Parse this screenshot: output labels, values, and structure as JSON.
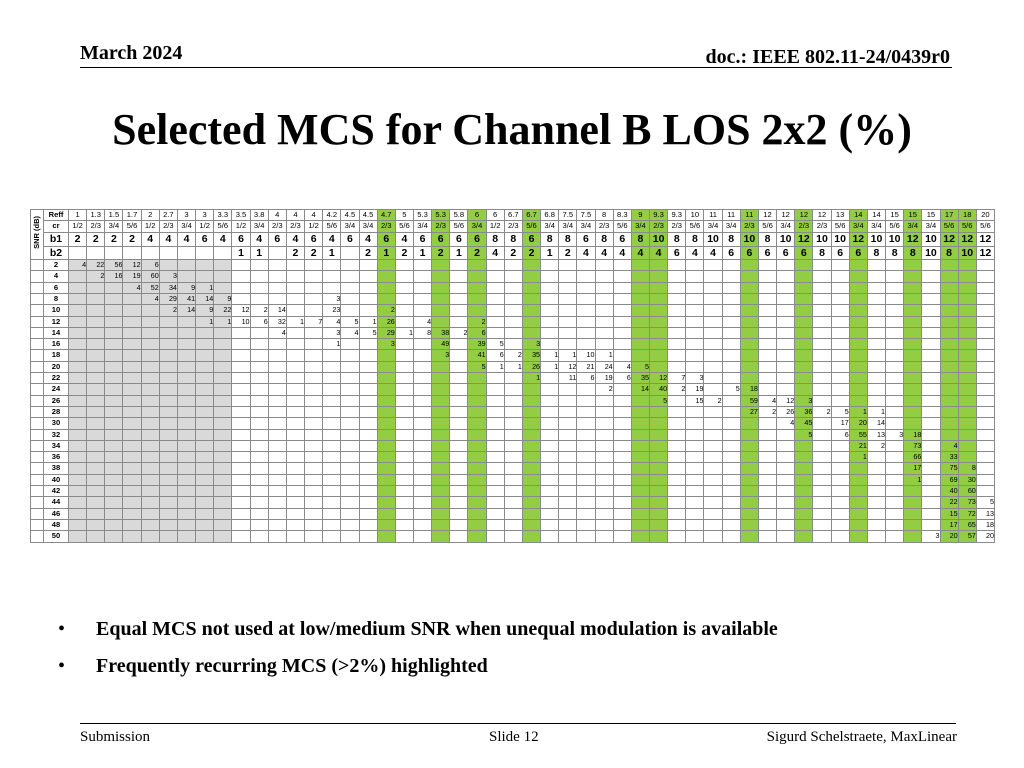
{
  "header": {
    "date": "March 2024",
    "doc": "doc.: IEEE 802.11-24/0439r0"
  },
  "title": "Selected MCS for Channel B LOS 2x2 (%)",
  "table": {
    "snr_axis_label": "SNR (dB)",
    "row_labels": {
      "reff": "Reff",
      "cr": "cr",
      "b1": "b1",
      "b2": "b2"
    },
    "reff": [
      "1",
      "1.3",
      "1.5",
      "1.7",
      "2",
      "2.7",
      "3",
      "3",
      "3.3",
      "3.5",
      "3.8",
      "4",
      "4",
      "4",
      "4.2",
      "4.5",
      "4.5",
      "4.7",
      "5",
      "5.3",
      "5.3",
      "5.8",
      "6",
      "6",
      "6.7",
      "6.7",
      "6.8",
      "7.5",
      "7.5",
      "8",
      "8.3",
      "9",
      "9.3",
      "9.3",
      "10",
      "11",
      "11",
      "11",
      "12",
      "12",
      "12",
      "12",
      "13",
      "14",
      "14",
      "15",
      "15",
      "15",
      "17",
      "18",
      "20"
    ],
    "cr": [
      "1/2",
      "2/3",
      "3/4",
      "5/6",
      "1/2",
      "2/3",
      "3/4",
      "1/2",
      "5/6",
      "1/2",
      "3/4",
      "2/3",
      "2/3",
      "1/2",
      "5/6",
      "3/4",
      "3/4",
      "2/3",
      "5/6",
      "3/4",
      "2/3",
      "5/6",
      "3/4",
      "1/2",
      "2/3",
      "5/6",
      "3/4",
      "3/4",
      "3/4",
      "2/3",
      "5/6",
      "3/4",
      "2/3",
      "2/3",
      "5/6",
      "3/4",
      "3/4",
      "2/3",
      "5/6",
      "3/4",
      "2/3",
      "2/3",
      "5/6",
      "3/4",
      "3/4",
      "5/6",
      "3/4",
      "3/4",
      "5/6",
      "5/6",
      "5/6"
    ],
    "b1": [
      "2",
      "2",
      "2",
      "2",
      "4",
      "4",
      "4",
      "6",
      "4",
      "6",
      "4",
      "6",
      "4",
      "6",
      "4",
      "6",
      "4",
      "6",
      "4",
      "6",
      "6",
      "6",
      "6",
      "8",
      "8",
      "6",
      "8",
      "8",
      "6",
      "8",
      "6",
      "8",
      "10",
      "8",
      "8",
      "10",
      "8",
      "10",
      "8",
      "10",
      "12",
      "10",
      "10",
      "12",
      "10",
      "10",
      "12",
      "10",
      "12",
      "12",
      "12"
    ],
    "b2": [
      "",
      "",
      "",
      "",
      "",
      "",
      "",
      "",
      "",
      "1",
      "1",
      "",
      "2",
      "2",
      "1",
      "",
      "2",
      "1",
      "2",
      "1",
      "2",
      "1",
      "2",
      "4",
      "2",
      "2",
      "1",
      "2",
      "4",
      "4",
      "4",
      "4",
      "4",
      "6",
      "4",
      "4",
      "6",
      "6",
      "6",
      "6",
      "6",
      "8",
      "6",
      "6",
      "8",
      "8",
      "8",
      "10",
      "8",
      "10",
      "12"
    ],
    "highlight_columns": [
      17,
      20,
      22,
      25,
      31,
      32,
      37,
      40,
      43,
      46,
      48,
      49
    ],
    "rows": [
      {
        "snr": "2",
        "cells": {
          "0": "4",
          "1": "22",
          "2": "56",
          "3": "12",
          "4": "6"
        }
      },
      {
        "snr": "4",
        "cells": {
          "1": "2",
          "2": "16",
          "3": "19",
          "4": "60",
          "5": "3"
        }
      },
      {
        "snr": "6",
        "cells": {
          "3": "4",
          "4": "52",
          "5": "34",
          "6": "9",
          "7": "1"
        }
      },
      {
        "snr": "8",
        "cells": {
          "4": "4",
          "5": "29",
          "6": "41",
          "7": "14",
          "8": "9",
          "14": "3"
        }
      },
      {
        "snr": "10",
        "cells": {
          "5": "2",
          "6": "14",
          "7": "9",
          "8": "22",
          "9": "12",
          "10": "2",
          "11": "14",
          "14": "23",
          "17": "2"
        }
      },
      {
        "snr": "12",
        "cells": {
          "7": "1",
          "8": "1",
          "9": "10",
          "10": "6",
          "11": "32",
          "12": "1",
          "13": "7",
          "14": "4",
          "15": "5",
          "16": "1",
          "17": "26",
          "19": "4",
          "22": "2"
        }
      },
      {
        "snr": "14",
        "cells": {
          "11": "4",
          "14": "3",
          "15": "4",
          "16": "5",
          "17": "29",
          "18": "1",
          "19": "8",
          "20": "38",
          "21": "2",
          "22": "6"
        }
      },
      {
        "snr": "16",
        "cells": {
          "14": "1",
          "17": "3",
          "20": "49",
          "22": "39",
          "23": "5",
          "25": "3"
        }
      },
      {
        "snr": "18",
        "cells": {
          "20": "3",
          "22": "41",
          "23": "6",
          "24": "2",
          "25": "35",
          "26": "1",
          "27": "1",
          "28": "10",
          "29": "1"
        }
      },
      {
        "snr": "20",
        "cells": {
          "22": "5",
          "23": "1",
          "24": "1",
          "25": "26",
          "26": "1",
          "27": "12",
          "28": "21",
          "29": "24",
          "30": "4",
          "31": "5"
        }
      },
      {
        "snr": "22",
        "cells": {
          "25": "1",
          "27": "11",
          "28": "6",
          "29": "19",
          "30": "6",
          "31": "35",
          "32": "12",
          "33": "7",
          "34": "3"
        }
      },
      {
        "snr": "24",
        "cells": {
          "29": "2",
          "31": "14",
          "32": "40",
          "33": "2",
          "34": "19",
          "36": "5",
          "37": "18"
        }
      },
      {
        "snr": "26",
        "cells": {
          "32": "5",
          "34": "15",
          "35": "2",
          "37": "59",
          "38": "4",
          "39": "12",
          "40": "3"
        }
      },
      {
        "snr": "28",
        "cells": {
          "37": "27",
          "38": "2",
          "39": "26",
          "40": "36",
          "41": "2",
          "42": "5",
          "43": "1",
          "44": "1"
        }
      },
      {
        "snr": "30",
        "cells": {
          "39": "4",
          "40": "45",
          "42": "17",
          "43": "20",
          "44": "14"
        }
      },
      {
        "snr": "32",
        "cells": {
          "40": "5",
          "42": "6",
          "43": "55",
          "44": "13",
          "45": "3",
          "46": "18"
        }
      },
      {
        "snr": "34",
        "cells": {
          "43": "21",
          "44": "2",
          "46": "73",
          "48": "4"
        }
      },
      {
        "snr": "36",
        "cells": {
          "43": "1",
          "46": "66",
          "48": "33"
        }
      },
      {
        "snr": "38",
        "cells": {
          "46": "17",
          "48": "75",
          "49": "8"
        }
      },
      {
        "snr": "40",
        "cells": {
          "46": "1",
          "48": "69",
          "49": "30"
        }
      },
      {
        "snr": "42",
        "cells": {
          "48": "40",
          "49": "60"
        }
      },
      {
        "snr": "44",
        "cells": {
          "48": "22",
          "49": "73",
          "50": "5"
        }
      },
      {
        "snr": "46",
        "cells": {
          "48": "15",
          "49": "72",
          "50": "13"
        }
      },
      {
        "snr": "48",
        "cells": {
          "48": "17",
          "49": "65",
          "50": "18"
        }
      },
      {
        "snr": "50",
        "cells": {
          "47": "3",
          "48": "20",
          "49": "57",
          "50": "20"
        }
      }
    ]
  },
  "bullets": [
    "Equal MCS not used at low/medium SNR when unequal modulation is available",
    "Frequently recurring MCS (>2%) highlighted"
  ],
  "bullet_symbol": "•",
  "footer": {
    "left": "Submission",
    "center": "Slide 12",
    "right": "Sigurd Schelstraete, MaxLinear"
  }
}
